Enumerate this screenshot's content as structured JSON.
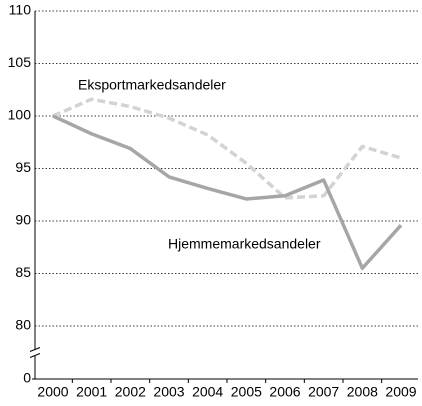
{
  "chart_data": {
    "type": "line",
    "categories": [
      "2000",
      "2001",
      "2002",
      "2003",
      "2004",
      "2005",
      "2006",
      "2007",
      "2008",
      "2009"
    ],
    "series": [
      {
        "name": "Hjemmemarkedsandeler",
        "color": "#a6a6a6",
        "dash": false,
        "values": [
          100,
          98.3,
          96.9,
          94.2,
          93.1,
          92.1,
          92.4,
          93.9,
          85.5,
          89.6
        ]
      },
      {
        "name": "Eksportmarkedsandeler",
        "color": "#d3d3d3",
        "dash": true,
        "values": [
          100,
          101.6,
          100.9,
          99.8,
          98.2,
          95.5,
          92.2,
          92.4,
          97.1,
          96.0
        ]
      }
    ],
    "ylim": [
      0,
      110
    ],
    "axis_break": [
      0,
      80
    ],
    "yticks": [
      0,
      80,
      85,
      90,
      95,
      100,
      105,
      110
    ],
    "grid": true
  }
}
